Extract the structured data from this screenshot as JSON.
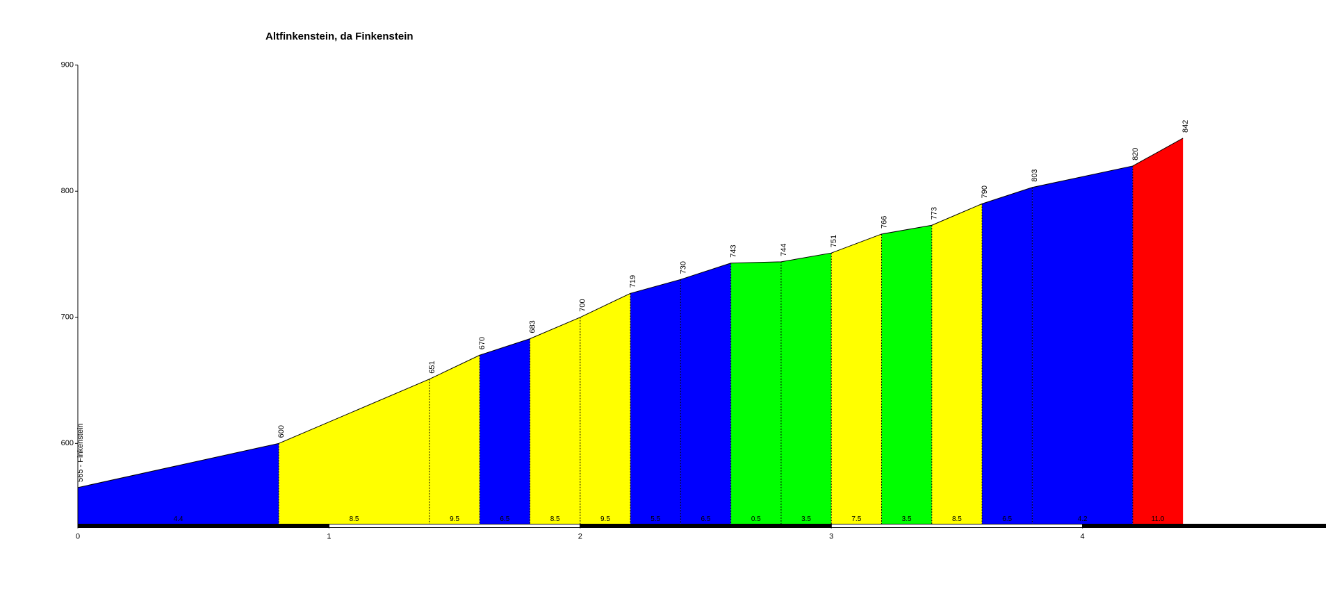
{
  "chart_data": {
    "type": "area",
    "title": "Altfinkenstein,  da Finkenstein",
    "x": [
      0,
      0.8,
      1.4,
      1.6,
      1.8,
      2.0,
      2.2,
      2.4,
      2.6,
      2.8,
      3.0,
      3.2,
      3.4,
      3.6,
      3.8,
      4.2,
      4.4
    ],
    "values": [
      565,
      600,
      651,
      670,
      683,
      700,
      719,
      730,
      743,
      744,
      751,
      766,
      773,
      790,
      803,
      820,
      842
    ],
    "value_labels": [
      "565 - Finkenstein",
      "600",
      "651",
      "670",
      "683",
      "700",
      "719",
      "730",
      "743",
      "744",
      "751",
      "766",
      "773",
      "790",
      "803",
      "820",
      "842"
    ],
    "segments": [
      {
        "gradient": "4.4",
        "color": "#0000ff"
      },
      {
        "gradient": "8.5",
        "color": "#ffff00"
      },
      {
        "gradient": "9.5",
        "color": "#ffff00"
      },
      {
        "gradient": "6.5",
        "color": "#0000ff"
      },
      {
        "gradient": "8.5",
        "color": "#ffff00"
      },
      {
        "gradient": "9.5",
        "color": "#ffff00"
      },
      {
        "gradient": "5.5",
        "color": "#0000ff"
      },
      {
        "gradient": "6.5",
        "color": "#0000ff"
      },
      {
        "gradient": "0.5",
        "color": "#00ff00"
      },
      {
        "gradient": "3.5",
        "color": "#00ff00"
      },
      {
        "gradient": "7.5",
        "color": "#ffff00"
      },
      {
        "gradient": "3.5",
        "color": "#00ff00"
      },
      {
        "gradient": "8.5",
        "color": "#ffff00"
      },
      {
        "gradient": "6.5",
        "color": "#0000ff"
      },
      {
        "gradient": "4.2",
        "color": "#0000ff"
      },
      {
        "gradient": "11.0",
        "color": "#ff0000"
      }
    ],
    "xlim": [
      0,
      4.97
    ],
    "xticks": [
      0,
      1,
      2,
      3,
      4
    ],
    "ylim": [
      536,
      900
    ],
    "yticks": [
      600,
      700,
      800,
      900
    ]
  }
}
